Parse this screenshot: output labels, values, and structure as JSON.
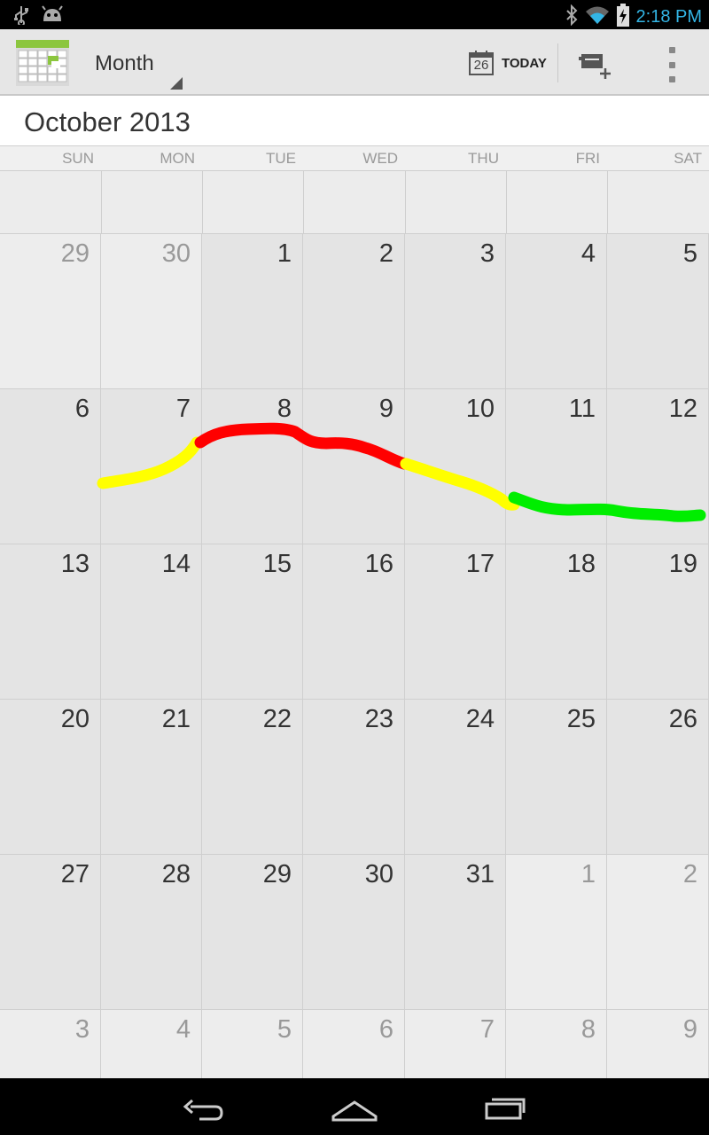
{
  "status_bar": {
    "time": "2:18 PM",
    "left_icons": [
      "usb-icon",
      "android-debug-icon"
    ],
    "right_icons": [
      "bluetooth-icon",
      "wifi-icon",
      "battery-charging-icon"
    ]
  },
  "action_bar": {
    "app_icon": "calendar-app-icon",
    "view_selector": "Month",
    "today_date": "26",
    "today_label": "TODAY",
    "new_event_icon": "new-event-icon",
    "overflow_icon": "overflow-menu-icon"
  },
  "month_title": "October 2013",
  "day_names": [
    "SUN",
    "MON",
    "TUE",
    "WED",
    "THU",
    "FRI",
    "SAT"
  ],
  "weeks": [
    [
      {
        "n": "29",
        "cur": false
      },
      {
        "n": "30",
        "cur": false
      },
      {
        "n": "1",
        "cur": true
      },
      {
        "n": "2",
        "cur": true
      },
      {
        "n": "3",
        "cur": true
      },
      {
        "n": "4",
        "cur": true
      },
      {
        "n": "5",
        "cur": true
      }
    ],
    [
      {
        "n": "6",
        "cur": true
      },
      {
        "n": "7",
        "cur": true
      },
      {
        "n": "8",
        "cur": true
      },
      {
        "n": "9",
        "cur": true
      },
      {
        "n": "10",
        "cur": true
      },
      {
        "n": "11",
        "cur": true
      },
      {
        "n": "12",
        "cur": true
      }
    ],
    [
      {
        "n": "13",
        "cur": true
      },
      {
        "n": "14",
        "cur": true
      },
      {
        "n": "15",
        "cur": true
      },
      {
        "n": "16",
        "cur": true
      },
      {
        "n": "17",
        "cur": true
      },
      {
        "n": "18",
        "cur": true
      },
      {
        "n": "19",
        "cur": true
      }
    ],
    [
      {
        "n": "20",
        "cur": true
      },
      {
        "n": "21",
        "cur": true
      },
      {
        "n": "22",
        "cur": true
      },
      {
        "n": "23",
        "cur": true
      },
      {
        "n": "24",
        "cur": true
      },
      {
        "n": "25",
        "cur": true
      },
      {
        "n": "26",
        "cur": true
      }
    ],
    [
      {
        "n": "27",
        "cur": true
      },
      {
        "n": "28",
        "cur": true
      },
      {
        "n": "29",
        "cur": true
      },
      {
        "n": "30",
        "cur": true
      },
      {
        "n": "31",
        "cur": true
      },
      {
        "n": "1",
        "cur": false
      },
      {
        "n": "2",
        "cur": false
      }
    ],
    [
      {
        "n": "3",
        "cur": false
      },
      {
        "n": "4",
        "cur": false
      },
      {
        "n": "5",
        "cur": false
      },
      {
        "n": "6",
        "cur": false
      },
      {
        "n": "7",
        "cur": false
      },
      {
        "n": "8",
        "cur": false
      },
      {
        "n": "9",
        "cur": false
      }
    ]
  ],
  "scribble_colors": {
    "yellow": "#ffff00",
    "red": "#ff0000",
    "green": "#00ee00"
  },
  "nav_bar": {
    "icons": [
      "back-icon",
      "home-icon",
      "recent-apps-icon"
    ]
  }
}
